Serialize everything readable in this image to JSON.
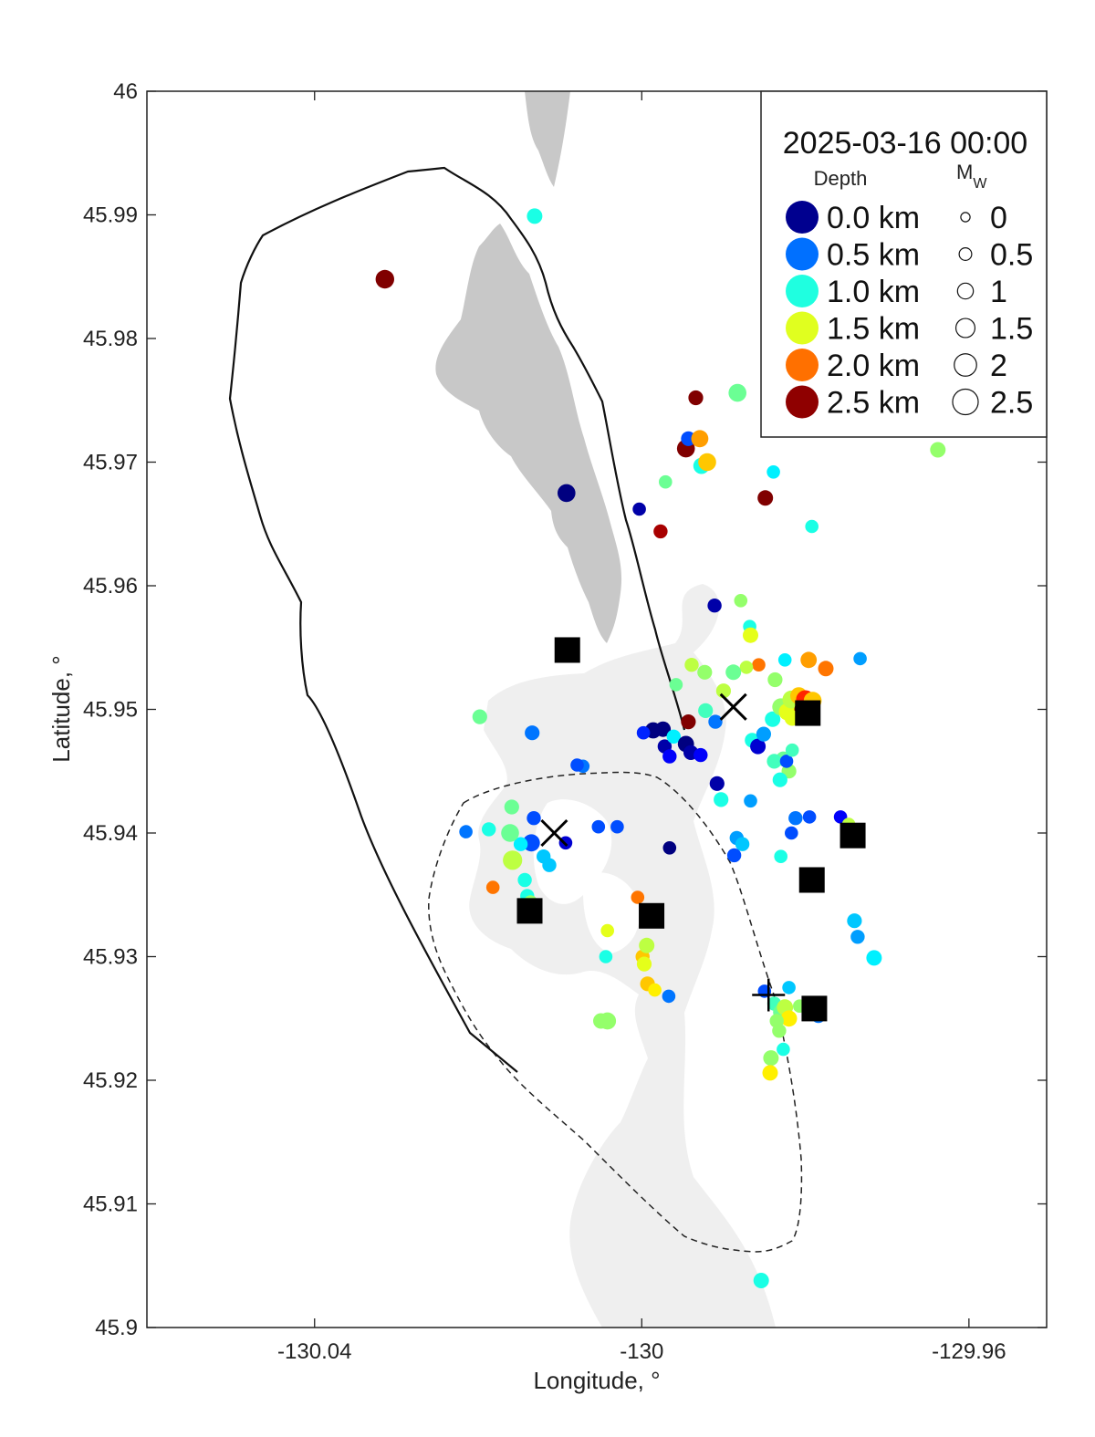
{
  "chart_data": {
    "type": "scatter",
    "title": "2025-03-16 00:00",
    "xlabel": "Longitude, °",
    "ylabel": "Latitude, °",
    "xlim": [
      -130.0605,
      -129.9505
    ],
    "ylim": [
      45.9,
      46.0
    ],
    "x_ticks": [
      -130.04,
      -130.0,
      -129.96
    ],
    "x_tick_labels": [
      "-130.04",
      "-130",
      "-129.96"
    ],
    "y_ticks": [
      45.9,
      45.91,
      45.92,
      45.93,
      45.94,
      45.95,
      45.96,
      45.97,
      45.98,
      45.99,
      46.0
    ],
    "y_tick_labels": [
      "45.9",
      "45.91",
      "45.92",
      "45.93",
      "45.94",
      "45.95",
      "45.96",
      "45.97",
      "45.98",
      "45.99",
      "46"
    ],
    "grid": false,
    "legend_placement": "top-right",
    "legend": {
      "depth_header": "Depth",
      "mag_header": "M",
      "mag_subscript": "W",
      "depth_entries": [
        {
          "label": "0.0 km",
          "color": "#00008f"
        },
        {
          "label": "0.5 km",
          "color": "#0070ff"
        },
        {
          "label": "1.0 km",
          "color": "#1fffe0"
        },
        {
          "label": "1.5 km",
          "color": "#e0ff1f"
        },
        {
          "label": "2.0 km",
          "color": "#ff7000"
        },
        {
          "label": "2.5 km",
          "color": "#8f0000"
        }
      ],
      "mag_entries": [
        {
          "label": "0",
          "mw": 0
        },
        {
          "label": "0.5",
          "mw": 0.5
        },
        {
          "label": "1",
          "mw": 1
        },
        {
          "label": "1.5",
          "mw": 1.5
        },
        {
          "label": "2",
          "mw": 2
        },
        {
          "label": "2.5",
          "mw": 2.5
        }
      ]
    },
    "colormap": "jet",
    "depth_range_km": [
      0,
      2.5
    ],
    "series": [
      {
        "kind": "earthquakes",
        "fields": [
          "lon",
          "lat",
          "depth_km",
          "mw"
        ],
        "points": [
          [
            -130.0314,
            45.9848,
            2.5,
            1.0
          ],
          [
            -130.0131,
            45.9899,
            1.0,
            0.6
          ],
          [
            -130.0092,
            45.9675,
            0.0,
            0.9
          ],
          [
            -130.0003,
            45.9662,
            0.1,
            0.3
          ],
          [
            -129.9971,
            45.9684,
            1.2,
            0.3
          ],
          [
            -129.9977,
            45.9644,
            2.4,
            0.4
          ],
          [
            -129.9934,
            45.9752,
            2.5,
            0.5
          ],
          [
            -129.9946,
            45.9711,
            2.5,
            0.9
          ],
          [
            -129.9943,
            45.9719,
            0.5,
            0.5
          ],
          [
            -129.9929,
            45.9719,
            1.8,
            0.8
          ],
          [
            -129.9927,
            45.9697,
            1.0,
            0.7
          ],
          [
            -129.992,
            45.97,
            1.7,
            0.9
          ],
          [
            -129.9883,
            45.9756,
            1.2,
            0.9
          ],
          [
            -129.9849,
            45.9671,
            2.5,
            0.6
          ],
          [
            -129.9839,
            45.9692,
            0.9,
            0.3
          ],
          [
            -129.9794,
            45.979,
            1.3,
            0.6
          ],
          [
            -129.9792,
            45.9648,
            1.0,
            0.3
          ],
          [
            -129.9638,
            45.971,
            1.3,
            0.6
          ],
          [
            -129.9825,
            45.954,
            0.9,
            0.3
          ],
          [
            -129.9911,
            45.9584,
            0.1,
            0.4
          ],
          [
            -129.9879,
            45.9588,
            1.3,
            0.3
          ],
          [
            -129.9868,
            45.9567,
            1.0,
            0.3
          ],
          [
            -129.9867,
            45.956,
            1.5,
            0.6
          ],
          [
            -129.9857,
            45.9536,
            1.9,
            0.3
          ],
          [
            -129.9872,
            45.9534,
            1.4,
            0.3
          ],
          [
            -129.9837,
            45.9524,
            1.3,
            0.5
          ],
          [
            -129.9888,
            45.953,
            1.2,
            0.6
          ],
          [
            -129.9939,
            45.9536,
            1.4,
            0.4
          ],
          [
            -129.9958,
            45.952,
            1.2,
            0.3
          ],
          [
            -129.9986,
            45.9483,
            0.0,
            0.7
          ],
          [
            -129.9974,
            45.9484,
            0.0,
            0.6
          ],
          [
            -129.9972,
            45.947,
            0.1,
            0.4
          ],
          [
            -129.9966,
            45.9462,
            0.3,
            0.4
          ],
          [
            -129.9961,
            45.9478,
            0.9,
            0.4
          ],
          [
            -129.9946,
            45.9472,
            0.0,
            0.7
          ],
          [
            -129.994,
            45.9465,
            0.1,
            0.5
          ],
          [
            -129.9928,
            45.9463,
            0.3,
            0.4
          ],
          [
            -129.9943,
            45.949,
            2.5,
            0.5
          ],
          [
            -129.9922,
            45.9499,
            1.1,
            0.5
          ],
          [
            -129.991,
            45.949,
            0.6,
            0.4
          ],
          [
            -129.99,
            45.9515,
            1.4,
            0.5
          ],
          [
            -129.9923,
            45.953,
            1.3,
            0.5
          ],
          [
            -129.9865,
            45.9475,
            1.0,
            0.5
          ],
          [
            -129.9858,
            45.947,
            0.2,
            0.6
          ],
          [
            -129.9851,
            45.948,
            0.7,
            0.5
          ],
          [
            -129.984,
            45.9492,
            1.0,
            0.6
          ],
          [
            -129.983,
            45.9502,
            1.3,
            0.8
          ],
          [
            -129.9822,
            45.9498,
            1.5,
            0.8
          ],
          [
            -129.9817,
            45.9508,
            1.4,
            0.9
          ],
          [
            -129.9808,
            45.9511,
            1.7,
            0.8
          ],
          [
            -129.98,
            45.9508,
            2.1,
            1.0
          ],
          [
            -129.9804,
            45.95,
            2.5,
            0.6
          ],
          [
            -129.9791,
            45.9507,
            1.7,
            0.9
          ],
          [
            -129.9796,
            45.954,
            1.8,
            0.7
          ],
          [
            -129.9775,
            45.9533,
            1.9,
            0.6
          ],
          [
            -129.9816,
            45.9493,
            1.5,
            0.6
          ],
          [
            -129.9827,
            45.946,
            1.2,
            0.5
          ],
          [
            -129.982,
            45.945,
            1.3,
            0.5
          ],
          [
            -129.9831,
            45.9443,
            1.0,
            0.5
          ],
          [
            -129.9838,
            45.9458,
            1.1,
            0.5
          ],
          [
            -129.9823,
            45.9458,
            0.5,
            0.3
          ],
          [
            -129.9816,
            45.9467,
            1.1,
            0.3
          ],
          [
            -129.9908,
            45.944,
            0.1,
            0.5
          ],
          [
            -129.9903,
            45.9427,
            1.0,
            0.5
          ],
          [
            -129.9867,
            45.9426,
            0.7,
            0.3
          ],
          [
            -129.9812,
            45.9412,
            0.6,
            0.4
          ],
          [
            -129.9795,
            45.9413,
            0.5,
            0.3
          ],
          [
            -129.9757,
            45.9413,
            0.3,
            0.3
          ],
          [
            -129.9747,
            45.9407,
            1.4,
            0.3
          ],
          [
            -129.9745,
            45.9399,
            1.6,
            0.3
          ],
          [
            -129.9817,
            45.94,
            0.5,
            0.3
          ],
          [
            -129.983,
            45.9381,
            1.0,
            0.3
          ],
          [
            -129.9884,
            45.9396,
            0.7,
            0.4
          ],
          [
            -129.9877,
            45.9391,
            0.8,
            0.4
          ],
          [
            -129.9887,
            45.9382,
            0.5,
            0.4
          ],
          [
            -129.9733,
            45.9541,
            0.7,
            0.3
          ],
          [
            -129.974,
            45.9329,
            0.8,
            0.5
          ],
          [
            -129.9736,
            45.9316,
            0.7,
            0.4
          ],
          [
            -129.9716,
            45.9299,
            0.9,
            0.6
          ],
          [
            -130.0053,
            45.9405,
            0.5,
            0.3
          ],
          [
            -130.003,
            45.9405,
            0.5,
            0.3
          ],
          [
            -129.9998,
            45.9481,
            0.4,
            0.3
          ],
          [
            -129.9966,
            45.9388,
            0.0,
            0.3
          ],
          [
            -130.0072,
            45.9454,
            0.6,
            0.3
          ],
          [
            -130.0079,
            45.9455,
            0.5,
            0.3
          ],
          [
            -130.0134,
            45.9481,
            0.6,
            0.5
          ],
          [
            -130.0132,
            45.9412,
            0.5,
            0.4
          ],
          [
            -130.0135,
            45.9392,
            0.5,
            0.8
          ],
          [
            -130.012,
            45.9381,
            0.8,
            0.4
          ],
          [
            -130.0113,
            45.9374,
            0.8,
            0.4
          ],
          [
            -130.0093,
            45.9392,
            0.2,
            0.3
          ],
          [
            -130.0148,
            45.9391,
            0.9,
            0.4
          ],
          [
            -130.0159,
            45.9421,
            1.2,
            0.5
          ],
          [
            -130.0161,
            45.94,
            1.2,
            0.9
          ],
          [
            -130.0158,
            45.9378,
            1.4,
            1.1
          ],
          [
            -130.0143,
            45.9362,
            1.0,
            0.4
          ],
          [
            -130.014,
            45.9349,
            1.0,
            0.4
          ],
          [
            -130.0136,
            45.9344,
            1.3,
            0.4
          ],
          [
            -130.0215,
            45.9401,
            0.6,
            0.3
          ],
          [
            -130.0187,
            45.9403,
            1.0,
            0.4
          ],
          [
            -130.0182,
            45.9356,
            1.9,
            0.3
          ],
          [
            -130.0198,
            45.9494,
            1.2,
            0.5
          ],
          [
            -130.0042,
            45.9321,
            1.5,
            0.3
          ],
          [
            -130.0044,
            45.93,
            1.0,
            0.3
          ],
          [
            -130.005,
            45.9248,
            1.3,
            0.6
          ],
          [
            -130.0042,
            45.9248,
            1.3,
            0.8
          ],
          [
            -130.0005,
            45.9348,
            1.9,
            0.3
          ],
          [
            -129.9999,
            45.93,
            1.7,
            0.4
          ],
          [
            -129.9997,
            45.9294,
            1.5,
            0.5
          ],
          [
            -129.9994,
            45.9309,
            1.4,
            0.6
          ],
          [
            -129.9993,
            45.9278,
            1.7,
            0.5
          ],
          [
            -129.9967,
            45.9268,
            0.6,
            0.3
          ],
          [
            -129.9984,
            45.9273,
            1.6,
            0.3
          ],
          [
            -129.985,
            45.9272,
            0.5,
            0.3
          ],
          [
            -129.982,
            45.9275,
            0.8,
            0.3
          ],
          [
            -129.9807,
            45.926,
            1.3,
            0.3
          ],
          [
            -129.9792,
            45.9254,
            0.6,
            0.4
          ],
          [
            -129.9784,
            45.9252,
            0.6,
            0.4
          ],
          [
            -129.9838,
            45.9262,
            1.1,
            0.4
          ],
          [
            -129.983,
            45.9255,
            1.2,
            0.6
          ],
          [
            -129.9825,
            45.9259,
            1.4,
            0.7
          ],
          [
            -129.982,
            45.925,
            1.6,
            0.7
          ],
          [
            -129.9835,
            45.9248,
            1.3,
            0.4
          ],
          [
            -129.9832,
            45.924,
            1.3,
            0.4
          ],
          [
            -129.9827,
            45.9225,
            1.0,
            0.3
          ],
          [
            -129.9842,
            45.9218,
            1.3,
            0.6
          ],
          [
            -129.9843,
            45.9206,
            1.6,
            0.6
          ],
          [
            -129.9854,
            45.9038,
            1.0,
            0.6
          ]
        ]
      },
      {
        "kind": "squares",
        "points": [
          [
            -130.0091,
            45.9548
          ],
          [
            -130.0137,
            45.9337
          ],
          [
            -129.9988,
            45.9333
          ],
          [
            -129.9797,
            45.9497
          ],
          [
            -129.9742,
            45.9398
          ],
          [
            -129.9792,
            45.9362
          ],
          [
            -129.9789,
            45.9258
          ]
        ]
      },
      {
        "kind": "x-markers",
        "points": [
          [
            -130.0107,
            45.94
          ],
          [
            -129.9888,
            45.9502
          ]
        ]
      },
      {
        "kind": "plus-markers",
        "points": [
          [
            -129.9845,
            45.9269
          ]
        ]
      }
    ]
  }
}
